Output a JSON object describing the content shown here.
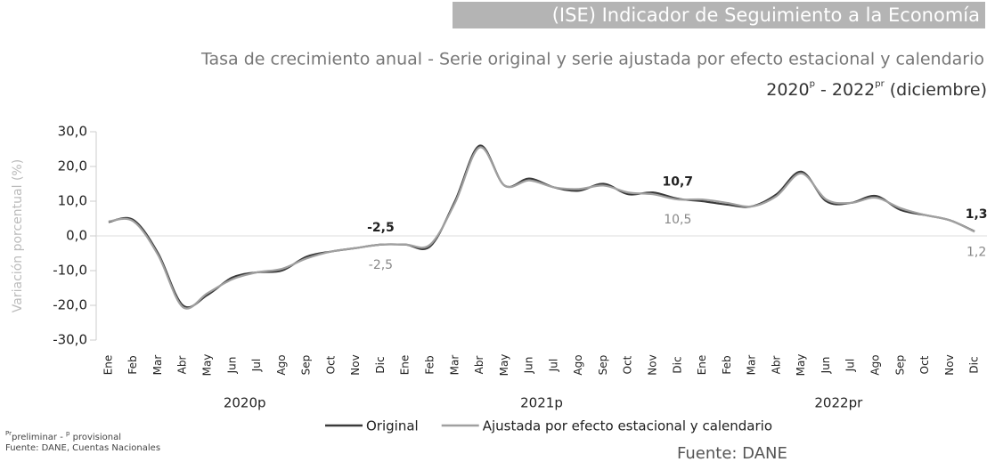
{
  "chart_data": {
    "type": "line",
    "title": "(ISE) Indicador de Seguimiento a la Economía",
    "subtitle": "Tasa de crecimiento anual - Serie original y serie ajustada por efecto estacional y calendario",
    "period": [
      "2020",
      "p",
      " - 2022",
      "pr",
      " (diciembre)"
    ],
    "y_label": "Variación porcentual (%)",
    "categories": [
      "Ene",
      "Feb",
      "Mar",
      "Abr",
      "May",
      "Jun",
      "Jul",
      "Ago",
      "Sep",
      "Oct",
      "Nov",
      "Dic",
      "Ene",
      "Feb",
      "Mar",
      "Abr",
      "May",
      "Jun",
      "Jul",
      "Ago",
      "Sep",
      "Oct",
      "Nov",
      "Dic",
      "Ene",
      "Feb",
      "Mar",
      "Abr",
      "May",
      "Jun",
      "Jul",
      "Ago",
      "Sep",
      "Oct",
      "Nov",
      "Dic"
    ],
    "groups": [
      "2020p",
      "2021p",
      "2022pr"
    ],
    "series": [
      {
        "name": "Original",
        "color": "#3a3a3a",
        "values": [
          4.0,
          4.6,
          -5,
          -20,
          -17,
          -12,
          -10.5,
          -10,
          -6,
          -4.5,
          -3.5,
          -2.5,
          -2.5,
          -3,
          10,
          26,
          14.5,
          16.5,
          14,
          13,
          15,
          12,
          12.5,
          10.7,
          10,
          9,
          8.5,
          12,
          18.5,
          10,
          9.5,
          11.5,
          7.5,
          6,
          4.5,
          1.3
        ],
        "value_labels": [
          null,
          null,
          null,
          null,
          null,
          null,
          null,
          null,
          null,
          null,
          null,
          "-2,5",
          null,
          null,
          null,
          null,
          null,
          null,
          null,
          null,
          null,
          null,
          null,
          "10,7",
          null,
          null,
          null,
          null,
          null,
          null,
          null,
          null,
          null,
          null,
          null,
          "1,3"
        ]
      },
      {
        "name": "Ajustada por efecto estacional y calendario",
        "color": "#a0a0a0",
        "values": [
          4.2,
          4.2,
          -5.5,
          -20.5,
          -16.5,
          -12.5,
          -10.5,
          -9.5,
          -6.5,
          -4.5,
          -3.5,
          -2.5,
          -2.5,
          -2.5,
          9.5,
          25.5,
          14.5,
          16,
          14,
          13.5,
          14.5,
          12.5,
          12,
          10.5,
          10.5,
          9.5,
          8.5,
          11.5,
          18,
          10.5,
          9.5,
          11,
          8,
          6,
          4.5,
          1.2
        ],
        "value_labels": [
          null,
          null,
          null,
          null,
          null,
          null,
          null,
          null,
          null,
          null,
          null,
          "-2,5",
          null,
          null,
          null,
          null,
          null,
          null,
          null,
          null,
          null,
          null,
          null,
          "10,5",
          null,
          null,
          null,
          null,
          null,
          null,
          null,
          null,
          null,
          null,
          null,
          "1,2"
        ]
      }
    ],
    "ylim": [
      -30,
      30
    ],
    "yticks": [
      {
        "value": 30,
        "label": "30,0"
      },
      {
        "value": 20,
        "label": "20,0"
      },
      {
        "value": 10,
        "label": "10,0"
      },
      {
        "value": 0,
        "label": "0,0"
      },
      {
        "value": -10,
        "label": "-10,0"
      },
      {
        "value": -20,
        "label": "-20,0"
      },
      {
        "value": -30,
        "label": "-30,0"
      }
    ],
    "footnote": [
      "Pr",
      "preliminar - ",
      "p",
      " provisional"
    ],
    "source": "Fuente: DANE, Cuentas Nacionales",
    "source_bottom": "Fuente: DANE"
  }
}
